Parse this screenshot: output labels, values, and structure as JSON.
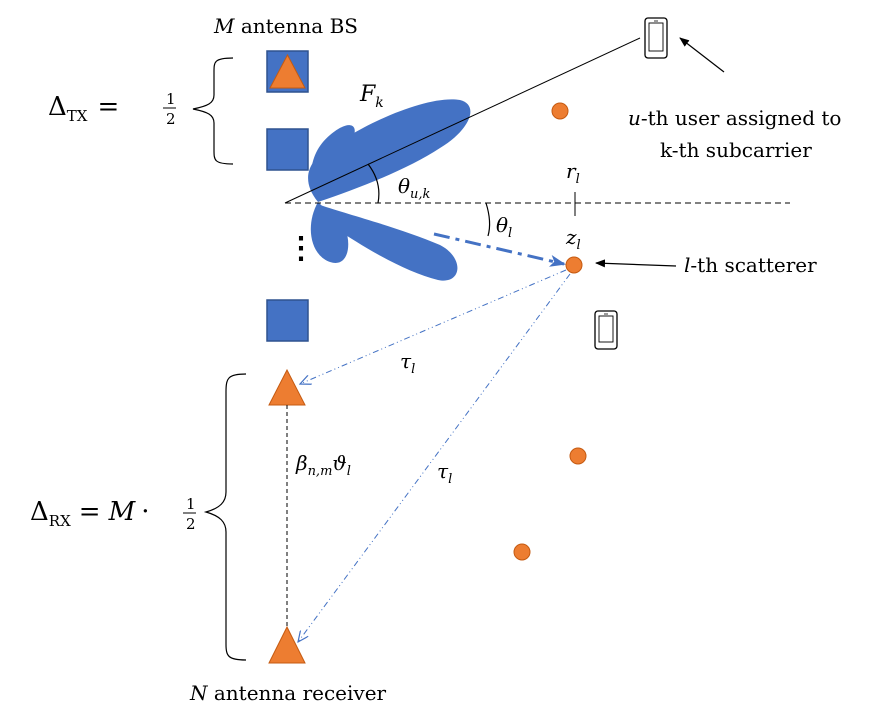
{
  "labels": {
    "bs_title": "M antenna BS",
    "bs_var": "M",
    "bs_rest": " antenna BS",
    "receiver_var": "N",
    "receiver_rest": " antenna receiver",
    "beam": "F",
    "beam_sub": "k",
    "theta_uk": "θ",
    "theta_uk_sub": "u,k",
    "theta_l": "θ",
    "theta_l_sub": "l",
    "r_l": "r",
    "r_l_sub": "l",
    "z_l": "z",
    "z_l_sub": "l",
    "tau_upper": "τ",
    "tau_upper_sub": "l",
    "tau_lower": "τ",
    "tau_lower_sub": "l",
    "beta_main": "β",
    "beta_sub": "n,m",
    "beta_tail": "ϑ",
    "beta_tail_sub": "l",
    "user_line1_var": "u",
    "user_line1_rest": "-th user assigned to",
    "user_line2": "k-th subcarrier",
    "scatterer_var": "l",
    "scatterer_rest": "-th scatterer",
    "vdots": "⋮"
  },
  "delta_tx": {
    "delta": "Δ",
    "sub": "TX",
    "eq": "=",
    "num": "1",
    "den": "2"
  },
  "delta_rx": {
    "delta": "Δ",
    "sub": "RX",
    "eq": "=",
    "m": "M",
    "dot": "·",
    "num": "1",
    "den": "2"
  },
  "colors": {
    "antenna_blue": "#4472c4",
    "antenna_border": "#2f528f",
    "orange": "#ed7d31",
    "orange_border": "#c55a11",
    "beam_blue": "#4472c4",
    "dash_blue": "#4472c4",
    "line_black": "#000000"
  }
}
